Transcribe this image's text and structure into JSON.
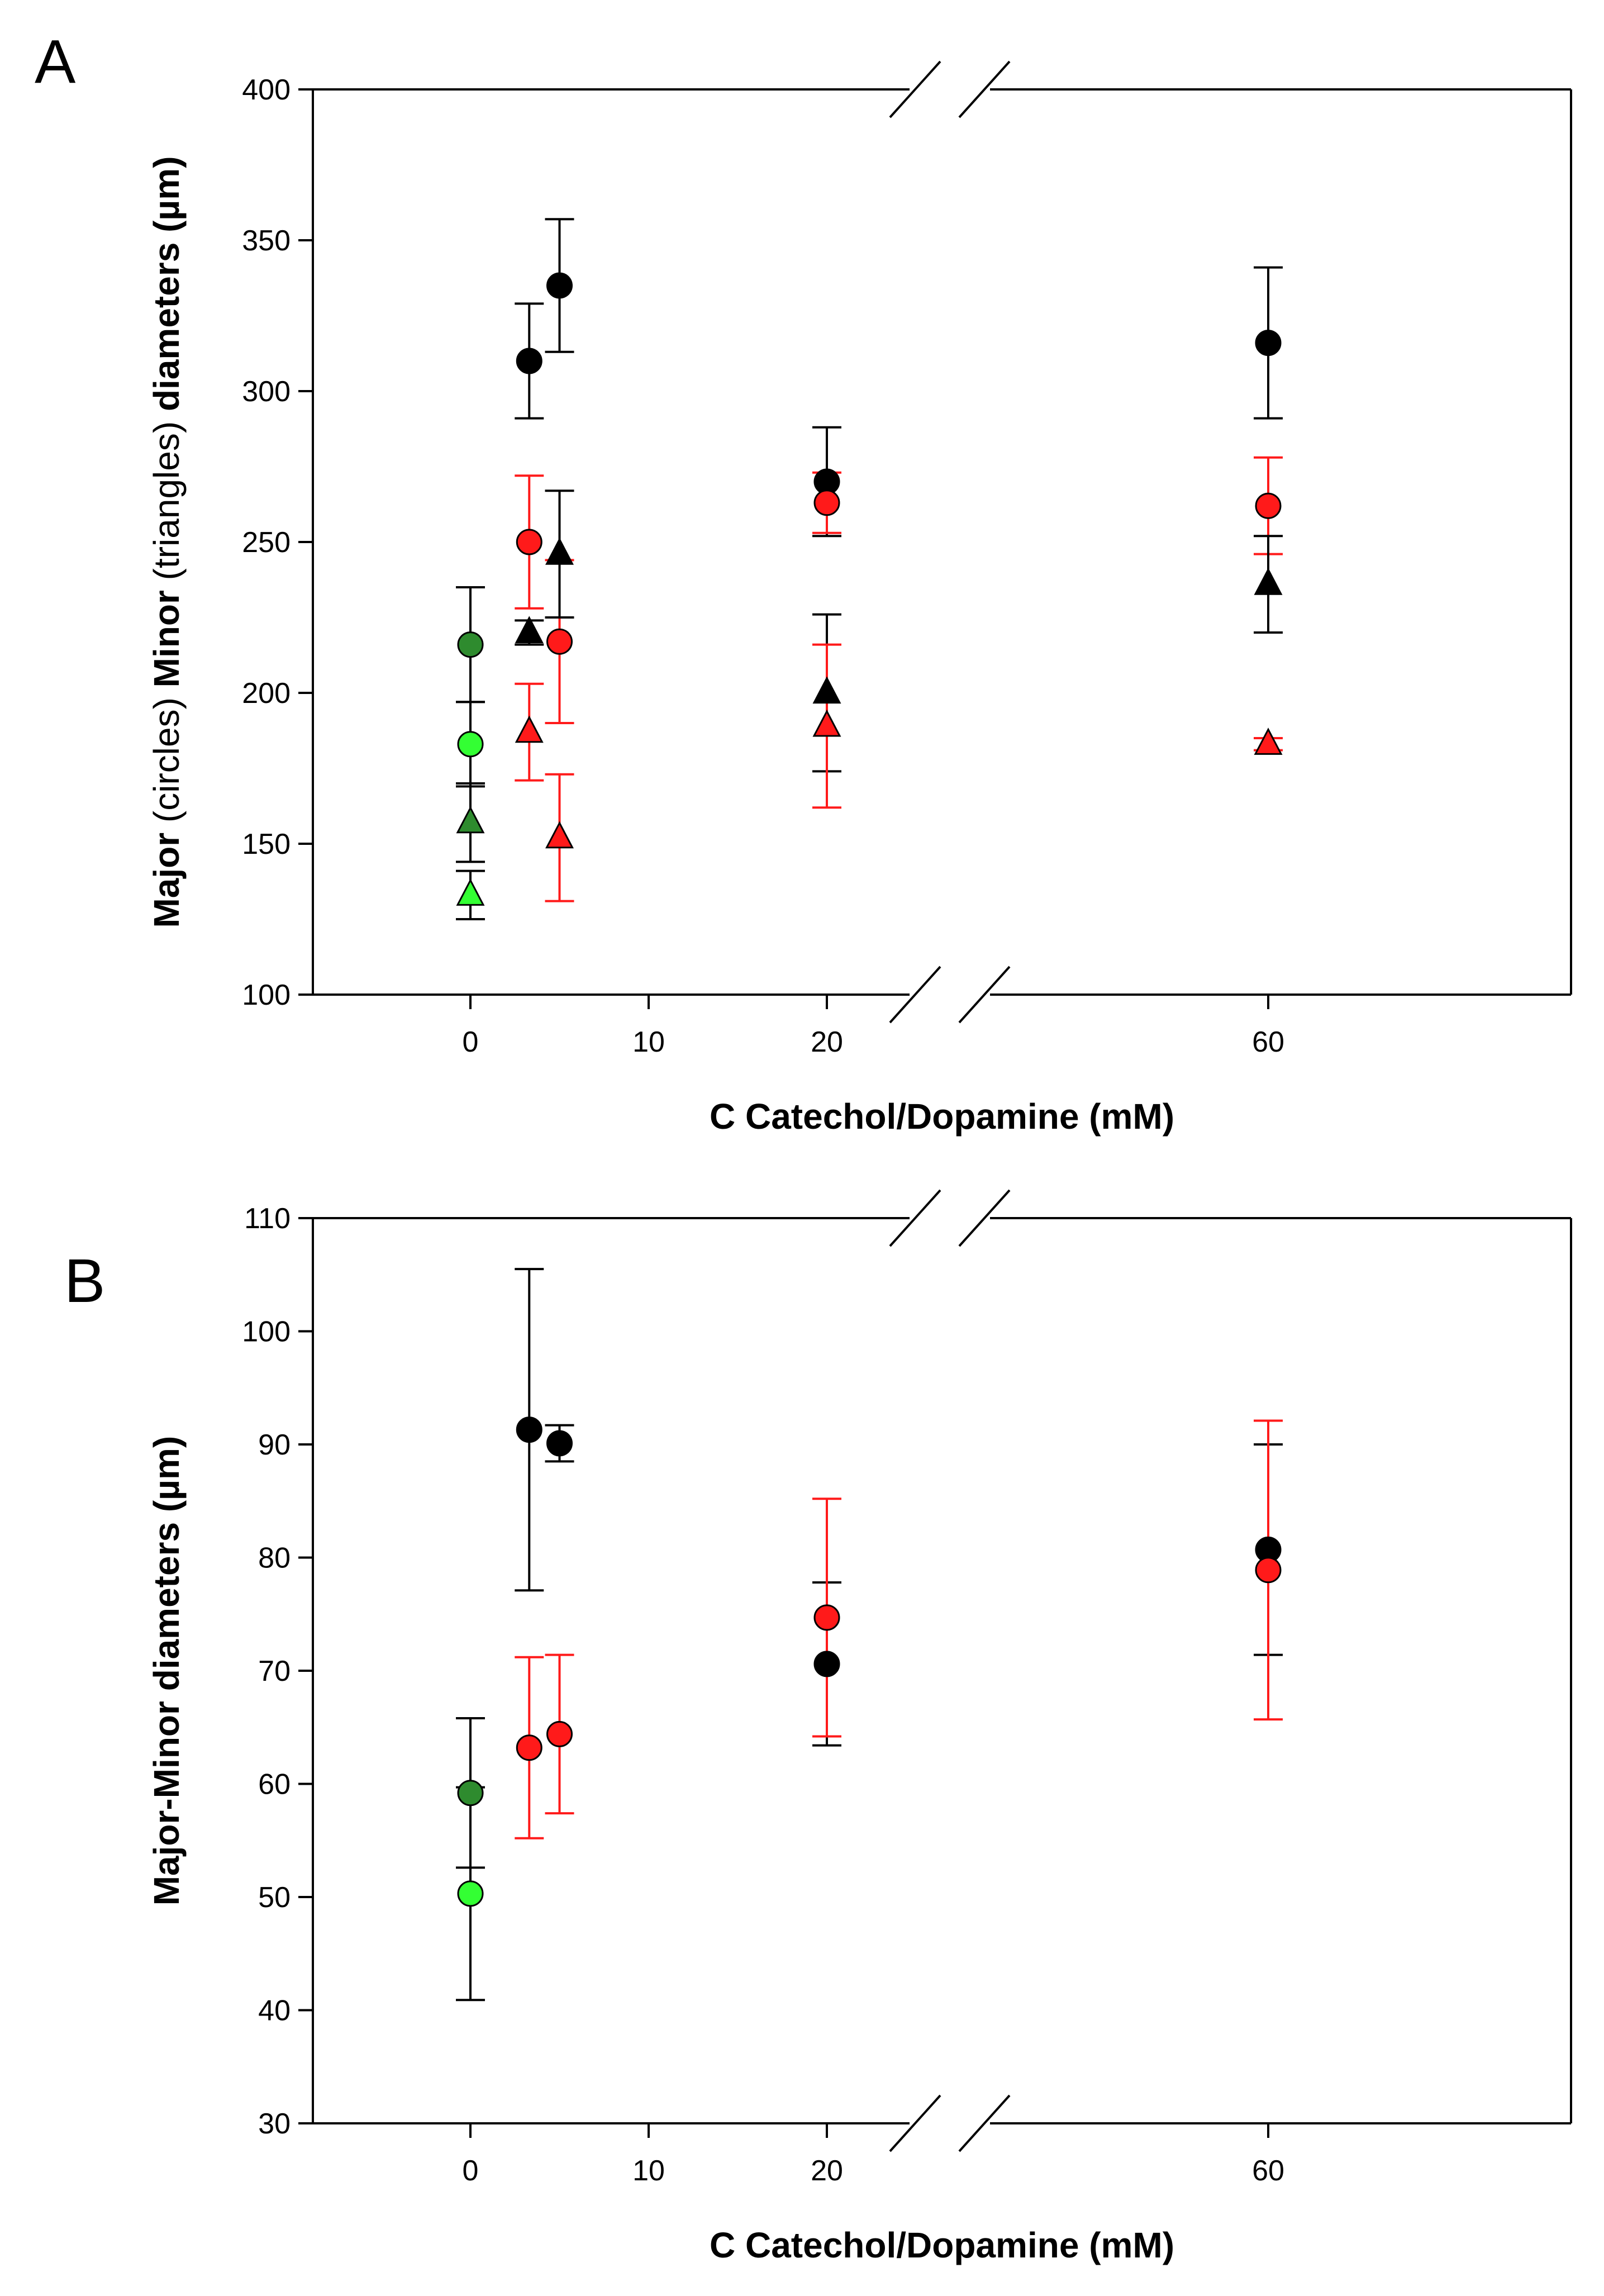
{
  "colors": {
    "black": "#000000",
    "red": "#ff1a1a",
    "dark_green": "#2e8b2e",
    "light_green": "#33ff33",
    "axis": "#000000"
  },
  "chart_data": [
    {
      "type": "scatter",
      "panel": "A",
      "xlabel": "C Catechol/Dopamine (mM)",
      "ylabel_parts": [
        {
          "text": "Major ",
          "bold": true
        },
        {
          "text": "(circles) ",
          "bold": false
        },
        {
          "text": "Minor ",
          "bold": true
        },
        {
          "text": "(triangles) ",
          "bold": false
        },
        {
          "text": "diameters (µm)",
          "bold": true
        }
      ],
      "ylim": [
        100,
        400
      ],
      "yticks": [
        100,
        150,
        200,
        250,
        300,
        350,
        400
      ],
      "ytick_labels": [
        "100",
        "150",
        "200",
        "250",
        "300",
        "350",
        "400"
      ],
      "x_broken_axis": {
        "break_after": 20,
        "resume_at": 60
      },
      "xticks": [
        0,
        10,
        20,
        60
      ],
      "xtick_labels": [
        "0",
        "10",
        "20",
        "60"
      ],
      "series": [
        {
          "name": "major-black",
          "marker": "circle",
          "color": "black",
          "points": [
            {
              "x": 3.3,
              "y": 310,
              "err": 19
            },
            {
              "x": 5,
              "y": 335,
              "err": 22
            },
            {
              "x": 20,
              "y": 270,
              "err": 18
            },
            {
              "x": 60,
              "y": 316,
              "err": 25
            }
          ]
        },
        {
          "name": "major-red",
          "marker": "circle",
          "color": "red",
          "points": [
            {
              "x": 3.3,
              "y": 250,
              "err": 22
            },
            {
              "x": 5,
              "y": 217,
              "err": 27
            },
            {
              "x": 20,
              "y": 263,
              "err": 10
            },
            {
              "x": 60,
              "y": 262,
              "err": 16
            }
          ]
        },
        {
          "name": "major-dark-green",
          "marker": "circle",
          "color": "dark_green",
          "points": [
            {
              "x": 0,
              "y": 216,
              "err": 19
            }
          ]
        },
        {
          "name": "major-light-green",
          "marker": "circle",
          "color": "light_green",
          "points": [
            {
              "x": 0,
              "y": 183,
              "err": 14
            }
          ]
        },
        {
          "name": "minor-black",
          "marker": "triangle",
          "color": "black",
          "points": [
            {
              "x": 3.3,
              "y": 220,
              "err": 4
            },
            {
              "x": 5,
              "y": 246,
              "err": 21
            },
            {
              "x": 20,
              "y": 200,
              "err": 26
            },
            {
              "x": 60,
              "y": 236,
              "err": 16
            }
          ]
        },
        {
          "name": "minor-red",
          "marker": "triangle",
          "color": "red",
          "points": [
            {
              "x": 3.3,
              "y": 187,
              "err": 16
            },
            {
              "x": 5,
              "y": 152,
              "err": 21
            },
            {
              "x": 20,
              "y": 189,
              "err": 27
            },
            {
              "x": 60,
              "y": 183,
              "err": 2
            }
          ]
        },
        {
          "name": "minor-dark-green",
          "marker": "triangle",
          "color": "dark_green",
          "points": [
            {
              "x": 0,
              "y": 157,
              "err": 13
            }
          ]
        },
        {
          "name": "minor-light-green",
          "marker": "triangle",
          "color": "light_green",
          "points": [
            {
              "x": 0,
              "y": 133,
              "err": 8
            }
          ]
        }
      ]
    },
    {
      "type": "scatter",
      "panel": "B",
      "xlabel": "C Catechol/Dopamine (mM)",
      "ylabel_parts": [
        {
          "text": "Major-Minor diameters (µm)",
          "bold": true
        }
      ],
      "ylim": [
        30,
        110
      ],
      "yticks": [
        30,
        40,
        50,
        60,
        70,
        80,
        90,
        100,
        110
      ],
      "ytick_labels": [
        "30",
        "40",
        "50",
        "60",
        "70",
        "80",
        "90",
        "100",
        "110"
      ],
      "x_broken_axis": {
        "break_after": 20,
        "resume_at": 60
      },
      "xticks": [
        0,
        10,
        20,
        60
      ],
      "xtick_labels": [
        "0",
        "10",
        "20",
        "60"
      ],
      "series": [
        {
          "name": "diff-black",
          "marker": "circle",
          "color": "black",
          "points": [
            {
              "x": 3.3,
              "y": 91.3,
              "err": 14.2
            },
            {
              "x": 5,
              "y": 90.1,
              "err": 1.6
            },
            {
              "x": 20,
              "y": 70.6,
              "err": 7.2
            },
            {
              "x": 60,
              "y": 80.7,
              "err": 9.3
            }
          ]
        },
        {
          "name": "diff-red",
          "marker": "circle",
          "color": "red",
          "points": [
            {
              "x": 3.3,
              "y": 63.2,
              "err": 8
            },
            {
              "x": 5,
              "y": 64.4,
              "err": 7
            },
            {
              "x": 20,
              "y": 74.7,
              "err": 10.5
            },
            {
              "x": 60,
              "y": 78.9,
              "err": 13.2
            }
          ]
        },
        {
          "name": "diff-dark-green",
          "marker": "circle",
          "color": "dark_green",
          "points": [
            {
              "x": 0,
              "y": 59.2,
              "err": 6.6
            }
          ]
        },
        {
          "name": "diff-light-green",
          "marker": "circle",
          "color": "light_green",
          "points": [
            {
              "x": 0,
              "y": 50.3,
              "err": 9.4
            }
          ]
        }
      ]
    }
  ]
}
